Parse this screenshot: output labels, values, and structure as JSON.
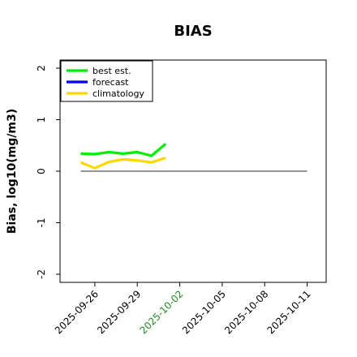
{
  "chart_data": {
    "type": "line",
    "title": "BIAS",
    "xlabel": "",
    "ylabel": "Bias, log10(mg/m3)",
    "ylim": [
      -2,
      2
    ],
    "yticks": [
      -2,
      -1,
      0,
      1,
      2
    ],
    "ytick_labels": [
      "-2",
      "-1",
      "0",
      "1",
      "2"
    ],
    "xlim": [
      "2025-09-24",
      "2025-10-12"
    ],
    "xticks": [
      "2025-09-26",
      "2025-09-29",
      "2025-10-02",
      "2025-10-05",
      "2025-10-08",
      "2025-10-11"
    ],
    "xtick_colors": [
      "#000000",
      "#000000",
      "#228B22",
      "#000000",
      "#000000",
      "#000000"
    ],
    "reference_line": {
      "y": 0,
      "from": "2025-09-25",
      "to": "2025-10-11",
      "color": "#555555"
    },
    "grid": false,
    "legend_position": "top-left",
    "legend": [
      {
        "label": "best est.",
        "color": "#00ee00"
      },
      {
        "label": "forecast",
        "color": "#0000ff"
      },
      {
        "label": "climatology",
        "color": "#ffd700"
      }
    ],
    "series": [
      {
        "name": "best est.",
        "color": "#00ee00",
        "x": [
          "2025-09-25",
          "2025-09-26",
          "2025-09-27",
          "2025-09-28",
          "2025-09-29",
          "2025-09-30",
          "2025-10-01"
        ],
        "y": [
          0.34,
          0.33,
          0.37,
          0.34,
          0.37,
          0.3,
          0.53
        ]
      },
      {
        "name": "forecast",
        "color": "#0000ff",
        "x": [],
        "y": []
      },
      {
        "name": "climatology",
        "color": "#ffd700",
        "x": [
          "2025-09-25",
          "2025-09-26",
          "2025-09-27",
          "2025-09-28",
          "2025-09-29",
          "2025-09-30",
          "2025-10-01"
        ],
        "y": [
          0.17,
          0.06,
          0.18,
          0.23,
          0.21,
          0.17,
          0.26
        ]
      }
    ]
  }
}
